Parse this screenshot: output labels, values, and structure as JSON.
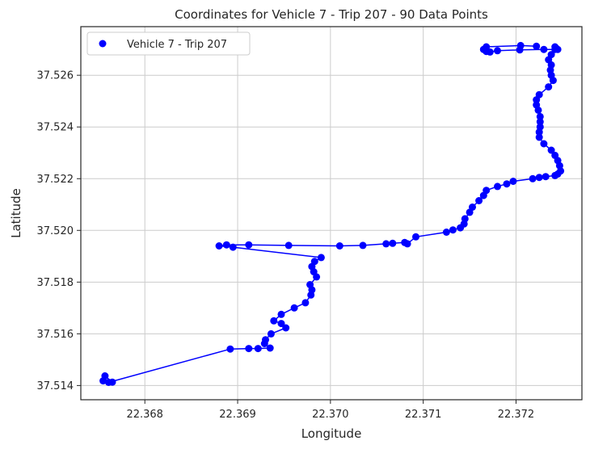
{
  "chart_data": {
    "type": "scatter",
    "title": "Coordinates for Vehicle 7 - Trip 207 - 90 Data Points",
    "xlabel": "Longitude",
    "ylabel": "Latitude",
    "xlim": [
      22.36731,
      22.37271
    ],
    "ylim": [
      37.51345,
      37.52788
    ],
    "xticks": [
      22.368,
      22.369,
      22.37,
      22.371,
      22.372
    ],
    "xtick_labels": [
      "22.368",
      "22.369",
      "22.370",
      "22.371",
      "22.372"
    ],
    "yticks": [
      37.514,
      37.516,
      37.518,
      37.52,
      37.522,
      37.524,
      37.526
    ],
    "ytick_labels": [
      "37.514",
      "37.516",
      "37.518",
      "37.520",
      "37.522",
      "37.524",
      "37.526"
    ],
    "grid": true,
    "legend_position": "top-left",
    "connect_points": true,
    "colors": {
      "points": "#0000ff",
      "line": "#0000ff",
      "grid": "#cccccc",
      "axes": "#262626"
    },
    "series": [
      {
        "name": "Vehicle 7 - Trip 207",
        "x": [
          22.36755,
          22.36757,
          22.36765,
          22.36761,
          22.36892,
          22.36912,
          22.36922,
          22.36935,
          22.36929,
          22.3693,
          22.36936,
          22.36952,
          22.36947,
          22.36939,
          22.36947,
          22.36961,
          22.36973,
          22.36979,
          22.3698,
          22.36978,
          22.36985,
          22.36982,
          22.3698,
          22.36983,
          22.3699,
          22.36895,
          22.3688,
          22.36888,
          22.36912,
          22.36955,
          22.3701,
          22.37035,
          22.3706,
          22.37067,
          22.3708,
          22.37083,
          22.37092,
          22.37125,
          22.37132,
          22.3714,
          22.37144,
          22.37145,
          22.3715,
          22.37153,
          22.3716,
          22.37165,
          22.37168,
          22.3718,
          22.3719,
          22.37197,
          22.37218,
          22.37225,
          22.37232,
          22.37242,
          22.37245,
          22.37248,
          22.37247,
          22.37245,
          22.37242,
          22.37238,
          22.3723,
          22.37225,
          22.37225,
          22.37226,
          22.37226,
          22.37226,
          22.37224,
          22.37222,
          22.37222,
          22.37225,
          22.37235,
          22.3724,
          22.37238,
          22.37237,
          22.37238,
          22.37235,
          22.37238,
          22.37245,
          22.37242,
          22.37243,
          22.37242,
          22.3723,
          22.37204,
          22.3718,
          22.37172,
          22.37168,
          22.37165,
          22.37168,
          22.37205,
          22.37222
        ],
        "y": [
          37.51418,
          37.51437,
          37.51413,
          37.51412,
          37.51541,
          37.51543,
          37.51543,
          37.51545,
          37.51562,
          37.51577,
          37.516,
          37.51623,
          37.5164,
          37.5165,
          37.51675,
          37.517,
          37.5172,
          37.5175,
          37.5177,
          37.5179,
          37.5182,
          37.5184,
          37.5186,
          37.5188,
          37.51895,
          37.51935,
          37.5194,
          37.51944,
          37.51944,
          37.51942,
          37.5194,
          37.51942,
          37.51948,
          37.5195,
          37.51953,
          37.51948,
          37.51975,
          37.51993,
          37.52002,
          37.5201,
          37.52025,
          37.52045,
          37.5207,
          37.5209,
          37.52115,
          37.52135,
          37.52155,
          37.5217,
          37.5218,
          37.5219,
          37.522,
          37.52205,
          37.52208,
          37.52212,
          37.52218,
          37.5223,
          37.5225,
          37.5227,
          37.5229,
          37.5231,
          37.52335,
          37.5236,
          37.5238,
          37.524,
          37.5242,
          37.5244,
          37.52465,
          37.52485,
          37.52505,
          37.52525,
          37.52555,
          37.5258,
          37.526,
          37.5262,
          37.5264,
          37.5266,
          37.5268,
          37.527,
          37.5271,
          37.52705,
          37.527,
          37.527,
          37.52698,
          37.52695,
          37.5269,
          37.52692,
          37.527,
          37.5271,
          37.52715,
          37.52712
        ]
      }
    ]
  }
}
